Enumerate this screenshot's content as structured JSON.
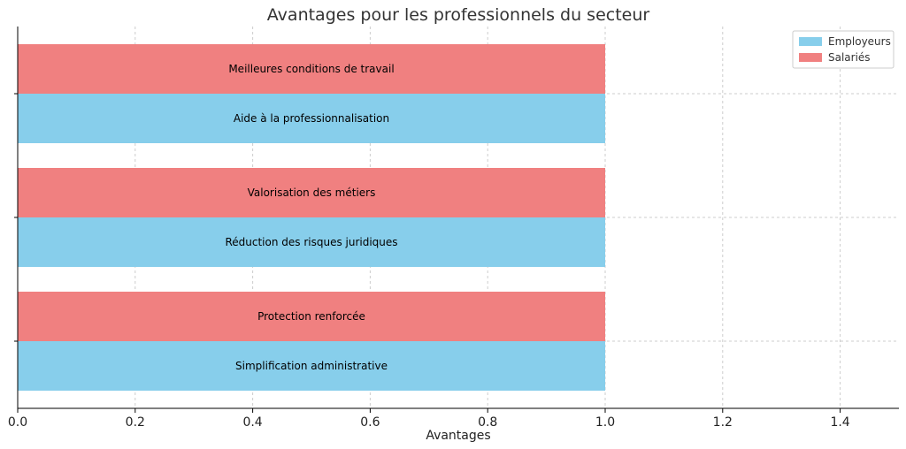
{
  "chart_data": {
    "type": "bar",
    "orientation": "horizontal",
    "title": "Avantages pour les professionnels du secteur",
    "xlabel": "Avantages",
    "ylabel": "",
    "xlim": [
      0,
      1.5
    ],
    "x_ticks": [
      "0.0",
      "0.2",
      "0.4",
      "0.6",
      "0.8",
      "1.0",
      "1.2",
      "1.4"
    ],
    "grid": true,
    "legend_position": "top-right",
    "series": [
      {
        "name": "Employeurs",
        "color": "#87CEEB",
        "items": [
          {
            "label": "Aide à la professionnalisation",
            "value": 1.0
          },
          {
            "label": "Réduction des risques juridiques",
            "value": 1.0
          },
          {
            "label": "Simplification administrative",
            "value": 1.0
          }
        ]
      },
      {
        "name": "Salariés",
        "color": "#F08080",
        "items": [
          {
            "label": "Meilleures conditions de travail",
            "value": 1.0
          },
          {
            "label": "Valorisation des métiers",
            "value": 1.0
          },
          {
            "label": "Protection renforcée",
            "value": 1.0
          }
        ]
      }
    ]
  }
}
